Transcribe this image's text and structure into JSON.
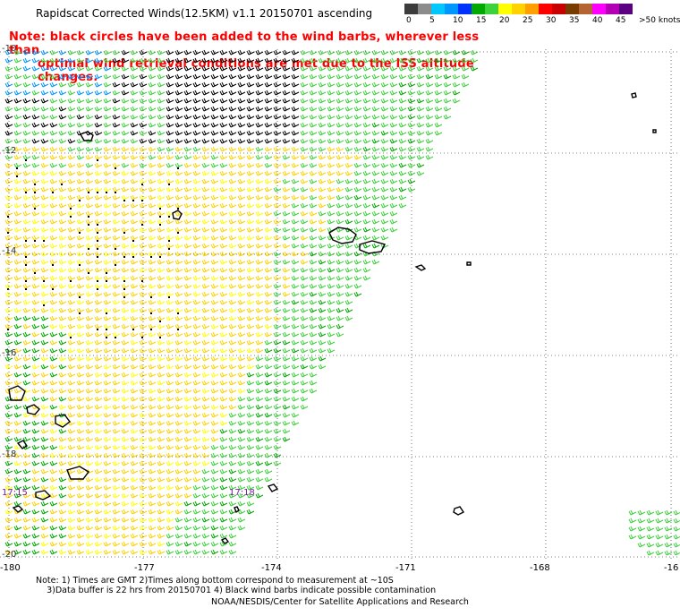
{
  "title": "Rapidscat Corrected Winds(12.5KM) v1.1 20150701 ascending",
  "colorbar": {
    "colors": [
      "#3c3c3c",
      "#8c8c8c",
      "#00c8ff",
      "#0096ff",
      "#0032ff",
      "#00aa00",
      "#3cd23c",
      "#ffff00",
      "#ffd200",
      "#ffa000",
      "#ff0000",
      "#c80000",
      "#783c00",
      "#b46432",
      "#ff00ff",
      "#b400b4",
      "#5a0080"
    ],
    "labels": [
      "0",
      "5",
      "10",
      "15",
      "20",
      "25",
      "30",
      "35",
      "40",
      "45",
      ">50 knots"
    ]
  },
  "note": {
    "line1": "Note: black circles have been added to the wind barbs, wherever less than",
    "line2": "optimal wind retrieval conditions are met due to the ISS altitude changes."
  },
  "lon_labels": [
    "-180",
    "-177",
    "-174",
    "-171",
    "-168",
    "-16"
  ],
  "lat_labels": [
    "-10",
    "-12",
    "-14",
    "-16",
    "-18",
    "-20"
  ],
  "pass_times": [
    "17:15",
    "17:18"
  ],
  "footnote": {
    "line1": "Note: 1) Times are GMT 2)Times along bottom correspond to measurement at ~10S",
    "line2": "3)Data buffer is 22 hrs from 20150701 4) Black wind barbs indicate possible contamination"
  },
  "credit": "NOAA/NESDIS/Center for Satellite Applications and Research"
}
